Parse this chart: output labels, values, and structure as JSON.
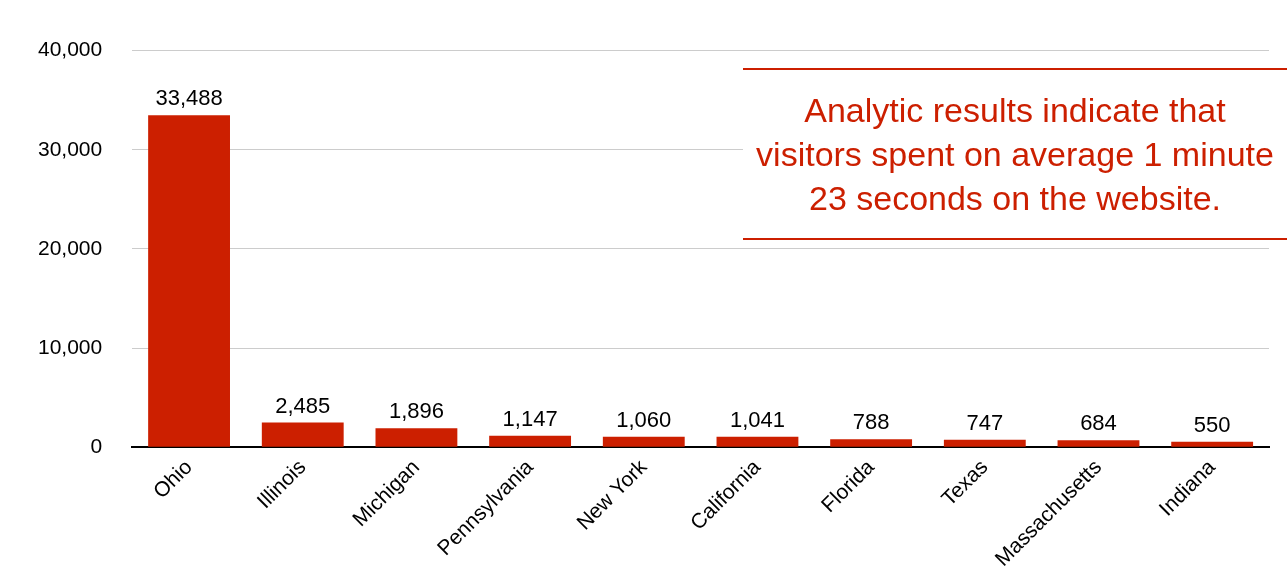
{
  "chart_data": {
    "type": "bar",
    "categories": [
      "Ohio",
      "Illinois",
      "Michigan",
      "Pennsylvania",
      "New York",
      "California",
      "Florida",
      "Texas",
      "Massachusetts",
      "Indiana"
    ],
    "values": [
      33488,
      2485,
      1896,
      1147,
      1060,
      1041,
      788,
      747,
      684,
      550
    ],
    "color": "#cc1f00",
    "value_labels": [
      "33,488",
      "2,485",
      "1,896",
      "1,147",
      "1,060",
      "1,041",
      "788",
      "747",
      "684",
      "550"
    ],
    "ylim": [
      0,
      40000
    ],
    "yticks": [
      0,
      {
        "value": 10000,
        "label": "10,000"
      },
      {
        "value": 20000,
        "label": "20,000"
      },
      {
        "value": 30000,
        "label": "30,000"
      },
      {
        "value": 40000,
        "label": "40,000"
      }
    ],
    "grid": "y",
    "annotations": [
      "Analytic results indicate that visitors spent on average 1 minute 23 seconds on the website."
    ]
  }
}
